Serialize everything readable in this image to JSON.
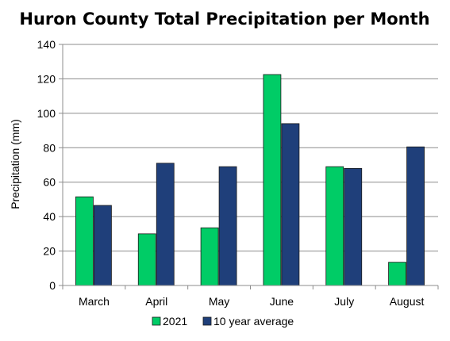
{
  "chart_data": {
    "type": "bar",
    "title": "Huron County Total Precipitation per Month",
    "xlabel": "",
    "ylabel": "Precipitation (mm)",
    "categories": [
      "March",
      "April",
      "May",
      "June",
      "July",
      "August"
    ],
    "series": [
      {
        "name": "2021",
        "color": "#00cc66",
        "values": [
          51.5,
          30,
          33.5,
          122.5,
          69,
          13.5
        ]
      },
      {
        "name": "10 year average",
        "color": "#1f3f7a",
        "values": [
          46.5,
          71,
          69,
          94,
          68,
          80.5
        ]
      }
    ],
    "ylim": [
      0,
      140
    ],
    "yticks": [
      0,
      20,
      40,
      60,
      80,
      100,
      120,
      140
    ],
    "grid": true,
    "legend_position": "bottom"
  }
}
